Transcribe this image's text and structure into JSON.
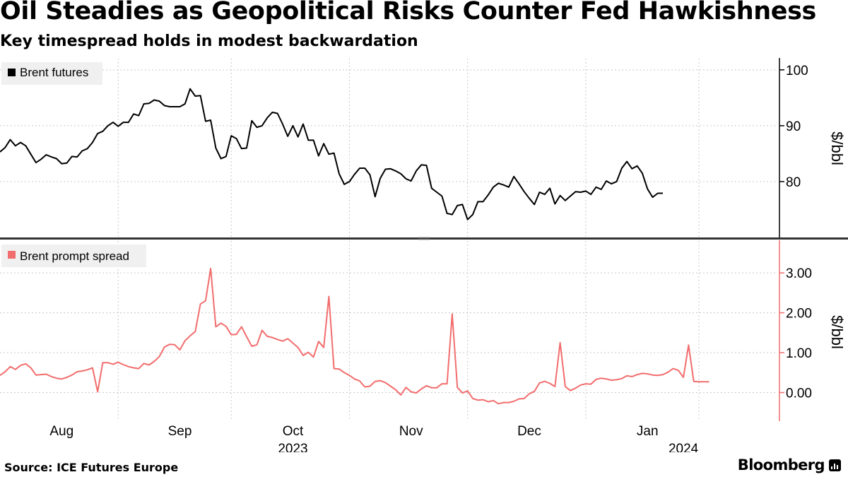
{
  "title": "Oil Steadies as Geopolitical Risks Counter Fed Hawkishness",
  "subtitle": "Key timespread holds in modest backwardation",
  "source": "Source: ICE Futures Europe",
  "brand": "Bloomberg",
  "colors": {
    "futures": "#000000",
    "spread": "#f26d6d",
    "grid": "#c8c8c8",
    "legend_bg": "#f0f0f0"
  },
  "chart_data": [
    {
      "type": "line",
      "name": "Brent futures",
      "legend": "Brent futures",
      "ylabel": "$/bbl",
      "ylim": [
        70,
        102
      ],
      "yticks": [
        {
          "v": 100,
          "label": "100"
        },
        {
          "v": 90,
          "label": "90"
        },
        {
          "v": 80,
          "label": "80"
        }
      ],
      "x_start": 0,
      "x_step": 1,
      "values": [
        85.3,
        86.1,
        87.5,
        86.4,
        87.0,
        86.4,
        84.9,
        83.4,
        84.0,
        84.8,
        84.4,
        84.1,
        83.2,
        83.3,
        84.5,
        84.4,
        85.5,
        85.9,
        87.0,
        88.6,
        89.0,
        90.0,
        90.6,
        89.9,
        90.6,
        90.6,
        92.1,
        91.8,
        93.9,
        94.0,
        94.6,
        94.4,
        93.6,
        93.4,
        93.4,
        93.4,
        93.9,
        96.6,
        95.3,
        95.4,
        90.8,
        91.0,
        86.0,
        84.1,
        84.5,
        88.2,
        87.7,
        85.9,
        86.0,
        90.9,
        89.7,
        90.0,
        91.4,
        92.4,
        92.2,
        90.3,
        88.1,
        90.0,
        88.0,
        90.3,
        87.4,
        87.4,
        84.6,
        86.8,
        84.9,
        85.1,
        81.4,
        79.5,
        80.0,
        81.3,
        82.4,
        82.4,
        81.2,
        77.3,
        80.6,
        82.2,
        82.3,
        81.9,
        81.4,
        80.5,
        80.1,
        81.9,
        83.0,
        82.9,
        78.8,
        78.1,
        77.4,
        74.3,
        74.1,
        75.7,
        75.9,
        73.2,
        74.1,
        76.4,
        76.4,
        77.6,
        79.0,
        79.7,
        79.4,
        79.0,
        80.9,
        79.6,
        78.2,
        77.0,
        75.9,
        78.1,
        77.7,
        78.8,
        76.0,
        77.5,
        76.6,
        77.4,
        78.2,
        78.1,
        78.3,
        77.7,
        79.0,
        78.6,
        80.1,
        79.6,
        80.0,
        82.4,
        83.6,
        82.3,
        82.8,
        81.5,
        78.7,
        77.2,
        77.9,
        77.9
      ]
    },
    {
      "type": "line",
      "name": "Brent prompt spread",
      "legend": "Brent prompt spread",
      "ylabel": "$/bbl",
      "ylim": [
        -0.7,
        3.8
      ],
      "yticks": [
        {
          "v": 3.0,
          "label": "3.00"
        },
        {
          "v": 2.0,
          "label": "2.00"
        },
        {
          "v": 1.0,
          "label": "1.00"
        },
        {
          "v": 0.0,
          "label": "0.00"
        }
      ],
      "x_start": 0,
      "x_step": 1,
      "values": [
        0.43,
        0.52,
        0.65,
        0.58,
        0.68,
        0.72,
        0.62,
        0.44,
        0.45,
        0.46,
        0.4,
        0.36,
        0.34,
        0.38,
        0.44,
        0.52,
        0.54,
        0.57,
        0.62,
        0.02,
        0.75,
        0.75,
        0.71,
        0.76,
        0.7,
        0.65,
        0.62,
        0.6,
        0.73,
        0.69,
        0.78,
        0.9,
        1.14,
        1.21,
        1.2,
        1.07,
        1.3,
        1.42,
        1.53,
        2.22,
        2.3,
        3.11,
        1.65,
        1.74,
        1.66,
        1.45,
        1.46,
        1.65,
        1.4,
        1.16,
        1.2,
        1.56,
        1.41,
        1.38,
        1.33,
        1.29,
        1.35,
        1.24,
        1.13,
        0.93,
        1.01,
        0.89,
        1.28,
        1.13,
        2.41,
        0.6,
        0.59,
        0.5,
        0.43,
        0.34,
        0.29,
        0.14,
        0.16,
        0.28,
        0.3,
        0.25,
        0.16,
        0.07,
        -0.06,
        0.13,
        0.02,
        -0.01,
        0.09,
        0.17,
        0.12,
        0.12,
        0.22,
        0.22,
        1.97,
        0.13,
        -0.01,
        0.04,
        -0.15,
        -0.19,
        -0.18,
        -0.23,
        -0.2,
        -0.28,
        -0.25,
        -0.25,
        -0.22,
        -0.16,
        -0.15,
        -0.03,
        0.03,
        0.24,
        0.28,
        0.23,
        0.15,
        1.25,
        0.15,
        0.05,
        0.11,
        0.19,
        0.22,
        0.21,
        0.33,
        0.36,
        0.34,
        0.31,
        0.32,
        0.35,
        0.42,
        0.4,
        0.45,
        0.48,
        0.47,
        0.44,
        0.43,
        0.45,
        0.51,
        0.6,
        0.56,
        0.38,
        1.19,
        0.28,
        0.27,
        0.27,
        0.27
      ]
    }
  ],
  "x_axis": {
    "months": [
      {
        "label": "Aug",
        "x": 12
      },
      {
        "label": "Sep",
        "x": 35
      },
      {
        "label": "Oct",
        "x": 57
      },
      {
        "label": "Nov",
        "x": 80
      },
      {
        "label": "Dec",
        "x": 103
      },
      {
        "label": "Jan",
        "x": 126
      }
    ],
    "month_boundaries": [
      0,
      23,
      45,
      68,
      91,
      114,
      136
    ],
    "years": [
      {
        "label": "2023",
        "x": 57
      },
      {
        "label": "2024",
        "x": 133
      }
    ],
    "xlim": [
      0,
      151
    ]
  }
}
